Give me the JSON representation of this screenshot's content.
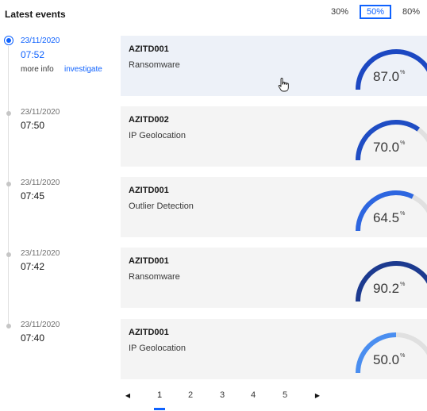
{
  "header": {
    "title": "Latest events"
  },
  "thresholds": [
    {
      "label": "30%",
      "active": false
    },
    {
      "label": "50%",
      "active": true
    },
    {
      "label": "80%",
      "active": false
    }
  ],
  "events": [
    {
      "date": "23/11/2020",
      "time": "07:52",
      "id": "AZITD001",
      "type": "Ransomware",
      "score": "87.0",
      "unit": "%",
      "color": "#1c48c2",
      "active": true
    },
    {
      "date": "23/11/2020",
      "time": "07:50",
      "id": "AZITD002",
      "type": "IP Geolocation",
      "score": "70.0",
      "unit": "%",
      "color": "#1f4dc4",
      "active": false
    },
    {
      "date": "23/11/2020",
      "time": "07:45",
      "id": "AZITD001",
      "type": "Outlier Detection",
      "score": "64.5",
      "unit": "%",
      "color": "#2d66e0",
      "active": false
    },
    {
      "date": "23/11/2020",
      "time": "07:42",
      "id": "AZITD001",
      "type": "Ransomware",
      "score": "90.2",
      "unit": "%",
      "color": "#1c3a8f",
      "active": false
    },
    {
      "date": "23/11/2020",
      "time": "07:40",
      "id": "AZITD001",
      "type": "IP Geolocation",
      "score": "50.0",
      "unit": "%",
      "color": "#4a8ef0",
      "active": false
    }
  ],
  "event_links": {
    "more_info": "more info",
    "investigate": "investigate"
  },
  "pagination": {
    "prev_icon": "chevron-left-icon",
    "next_icon": "chevron-right-icon",
    "pages": [
      "1",
      "2",
      "3",
      "4",
      "5"
    ],
    "current": "1"
  },
  "colors": {
    "accent": "#0f62fe",
    "gauge_track": "#e0e0e0"
  }
}
